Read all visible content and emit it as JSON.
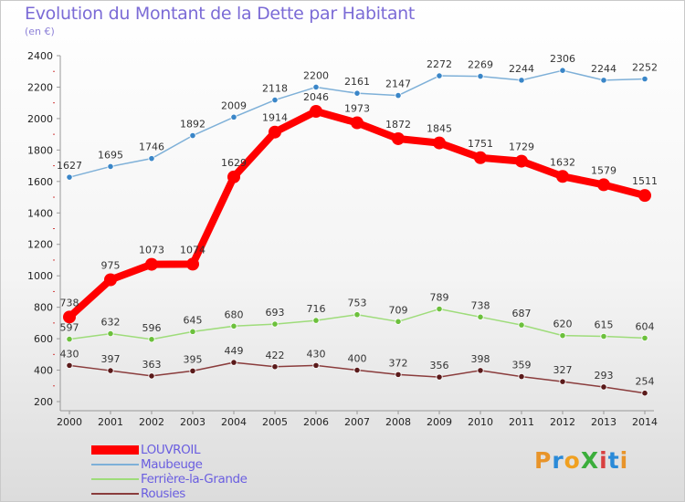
{
  "title": "Evolution du Montant de la Dette par Habitant",
  "subtitle": "(en €)",
  "logo": "ProXiti",
  "chart_data": {
    "type": "line",
    "title": "Evolution du Montant de la Dette par Habitant",
    "subtitle": "(en €)",
    "xlabel": "",
    "ylabel": "",
    "x": [
      "2000",
      "2001",
      "2002",
      "2003",
      "2004",
      "2005",
      "2006",
      "2007",
      "2008",
      "2009",
      "2010",
      "2011",
      "2012",
      "2013",
      "2014"
    ],
    "ylim": [
      200,
      2400
    ],
    "yticks": [
      200,
      400,
      600,
      800,
      1000,
      1200,
      1400,
      1600,
      1800,
      2000,
      2200,
      2400
    ],
    "grid": false,
    "legend_position": "bottom-left",
    "series": [
      {
        "name": "LOUVROIL",
        "color": "#ff0000",
        "width": 8,
        "values": [
          738,
          975,
          1073,
          1074,
          1629,
          1914,
          2046,
          1973,
          1872,
          1845,
          1751,
          1729,
          1632,
          1579,
          1511
        ],
        "labels": [
          "738",
          "975",
          "1073",
          "1074",
          "1629",
          "1914",
          "2046",
          "1973",
          "1872",
          "1845",
          "1751",
          "1729",
          "1632",
          "1579",
          "1511"
        ]
      },
      {
        "name": "Maubeuge",
        "color": "#7eb0d8",
        "marker": "#3a86c8",
        "width": 1.5,
        "values": [
          1627,
          1695,
          1746,
          1892,
          2009,
          2118,
          2200,
          2161,
          2147,
          2272,
          2269,
          2244,
          2306,
          2244,
          2252
        ],
        "labels": [
          "1627",
          "1695",
          "1746",
          "1892",
          "2009",
          "2118",
          "2200",
          "2161",
          "2147",
          "2272",
          "2269",
          "2244",
          "2306",
          "2244",
          "2252"
        ]
      },
      {
        "name": "Ferrière-la-Grande",
        "color": "#9edc7a",
        "marker": "#6cc03c",
        "width": 1.5,
        "values": [
          597,
          632,
          596,
          645,
          680,
          693,
          716,
          753,
          709,
          789,
          738,
          687,
          620,
          615,
          604
        ],
        "labels": [
          "597",
          "632",
          "596",
          "645",
          "680",
          "693",
          "716",
          "753",
          "709",
          "789",
          "738",
          "687",
          "620",
          "615",
          "604"
        ]
      },
      {
        "name": "Rousies",
        "color": "#8a3c3c",
        "marker": "#5a1a1a",
        "width": 1.5,
        "values": [
          430,
          397,
          363,
          395,
          449,
          422,
          430,
          400,
          372,
          356,
          398,
          359,
          327,
          293,
          254
        ],
        "labels": [
          "430",
          "397",
          "363",
          "395",
          "449",
          "422",
          "430",
          "400",
          "372",
          "356",
          "398",
          "359",
          "327",
          "293",
          "254"
        ]
      }
    ]
  }
}
